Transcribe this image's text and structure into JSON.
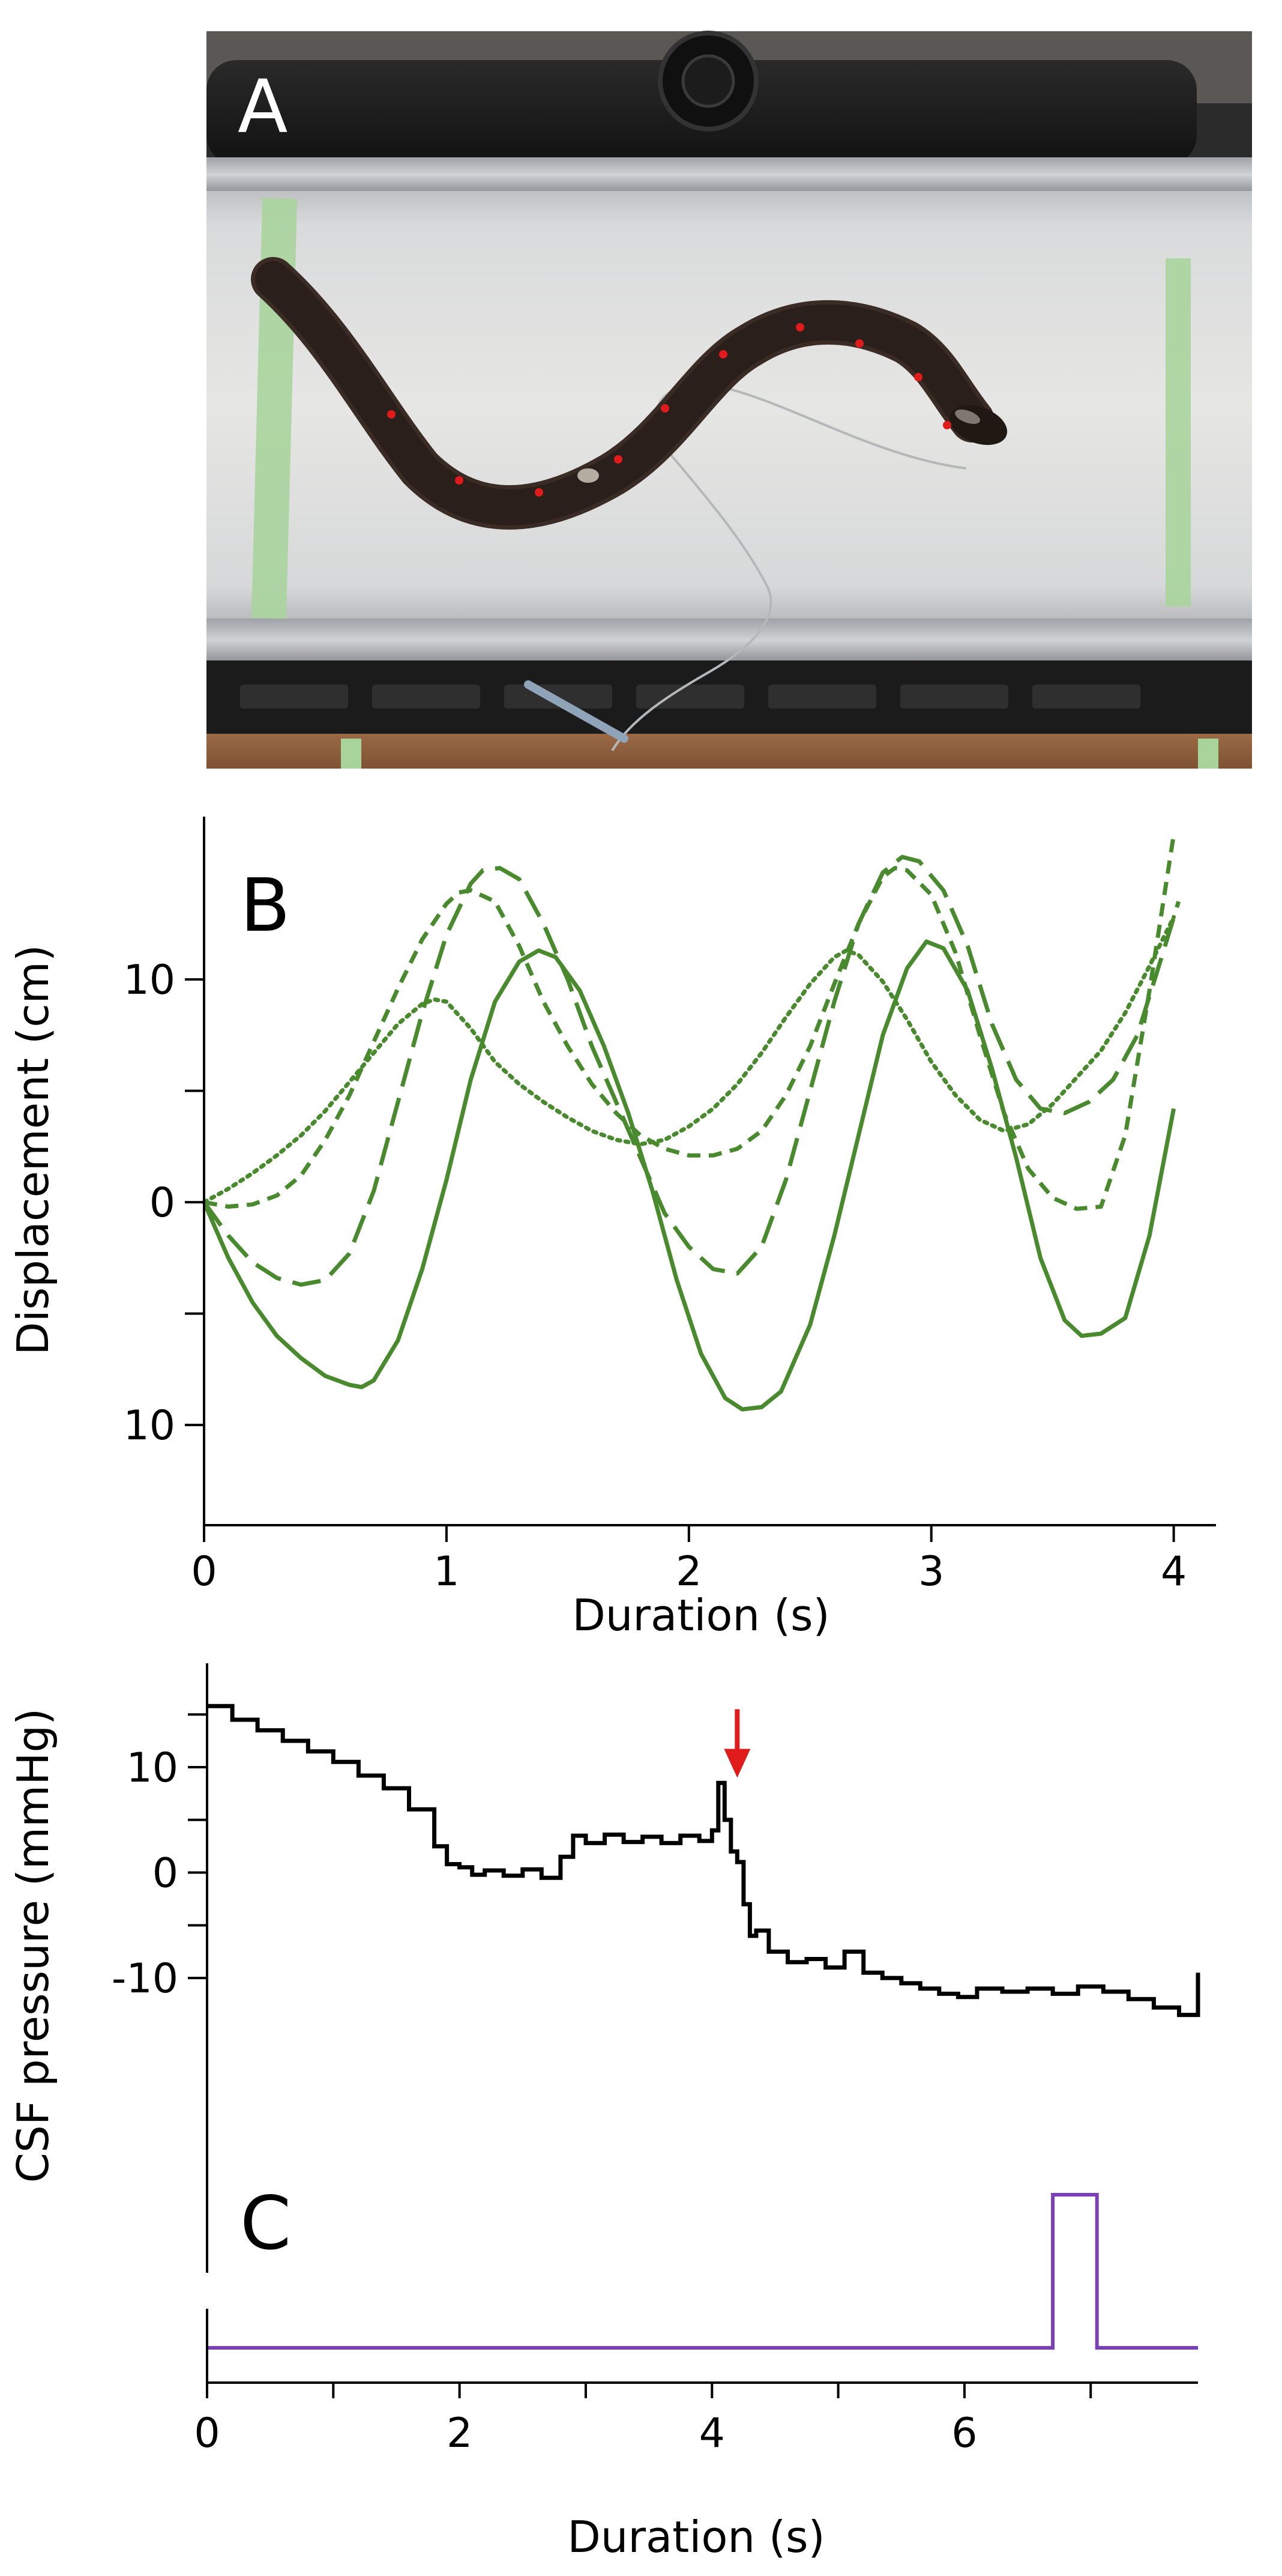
{
  "panel_a": {
    "label": "A",
    "marker_color": "#e01b1b",
    "marker_count": 10
  },
  "chart_data": [
    {
      "type": "line",
      "panel_label": "B",
      "title": "",
      "xlabel": "Duration (s)",
      "ylabel": "Displacement (cm)",
      "xlim": [
        0,
        4.1
      ],
      "ylim": [
        -14.5,
        16.5
      ],
      "xticks": [
        0,
        1,
        2,
        3,
        4
      ],
      "xtick_labels": [
        "0",
        "1",
        "2",
        "3",
        "4"
      ],
      "yticks": [
        10,
        5,
        0,
        -5,
        -10
      ],
      "ytick_labels": [
        "10",
        "",
        "0",
        "",
        "10"
      ],
      "grid": false,
      "legend": "none",
      "series_color": "#4a8a2e",
      "series": [
        {
          "style": "solid",
          "x": [
            0,
            0.1,
            0.2,
            0.3,
            0.4,
            0.5,
            0.6,
            0.65,
            0.7,
            0.8,
            0.9,
            1.0,
            1.1,
            1.2,
            1.3,
            1.38,
            1.45,
            1.55,
            1.65,
            1.75,
            1.85,
            1.95,
            2.05,
            2.15,
            2.22,
            2.3,
            2.38,
            2.5,
            2.6,
            2.7,
            2.8,
            2.9,
            2.98,
            3.05,
            3.15,
            3.25,
            3.35,
            3.45,
            3.55,
            3.62,
            3.7,
            3.8,
            3.9,
            4.0
          ],
          "y": [
            0,
            -2.5,
            -4.5,
            -6.0,
            -7.0,
            -7.8,
            -8.2,
            -8.3,
            -8.0,
            -6.2,
            -3.0,
            1.0,
            5.5,
            9.0,
            10.8,
            11.3,
            11.0,
            9.5,
            7.0,
            4.0,
            0.5,
            -3.5,
            -6.8,
            -8.8,
            -9.3,
            -9.2,
            -8.5,
            -5.5,
            -1.5,
            3.0,
            7.5,
            10.5,
            11.7,
            11.4,
            9.5,
            6.0,
            2.0,
            -2.5,
            -5.3,
            -6.0,
            -5.9,
            -5.2,
            -1.5,
            4.2
          ]
        },
        {
          "style": "long-dash",
          "x": [
            0,
            0.1,
            0.2,
            0.3,
            0.4,
            0.5,
            0.6,
            0.7,
            0.8,
            0.9,
            1.0,
            1.1,
            1.15,
            1.22,
            1.3,
            1.4,
            1.5,
            1.6,
            1.7,
            1.8,
            1.9,
            2.0,
            2.1,
            2.2,
            2.3,
            2.4,
            2.5,
            2.6,
            2.7,
            2.8,
            2.88,
            2.95,
            3.05,
            3.15,
            3.25,
            3.35,
            3.45,
            3.55,
            3.65,
            3.75,
            3.85,
            3.95,
            4.02
          ],
          "y": [
            0,
            -1.5,
            -2.7,
            -3.4,
            -3.7,
            -3.5,
            -2.3,
            0.5,
            4.5,
            8.5,
            12.0,
            14.3,
            14.9,
            15.0,
            14.5,
            12.5,
            10.0,
            7.0,
            4.5,
            2.0,
            -0.5,
            -2.0,
            -3.0,
            -3.2,
            -2.0,
            1.0,
            5.0,
            9.0,
            12.5,
            14.8,
            15.5,
            15.3,
            14.0,
            11.5,
            8.0,
            5.5,
            4.2,
            4.0,
            4.5,
            5.5,
            7.5,
            11.0,
            13.5
          ]
        },
        {
          "style": "short-dash",
          "x": [
            0,
            0.1,
            0.2,
            0.3,
            0.4,
            0.5,
            0.6,
            0.7,
            0.8,
            0.9,
            1.0,
            1.05,
            1.1,
            1.2,
            1.3,
            1.4,
            1.5,
            1.6,
            1.7,
            1.8,
            1.9,
            2.0,
            2.1,
            2.2,
            2.3,
            2.4,
            2.5,
            2.6,
            2.7,
            2.8,
            2.85,
            2.9,
            3.0,
            3.1,
            3.2,
            3.3,
            3.4,
            3.5,
            3.6,
            3.7,
            3.8,
            3.9,
            4.0
          ],
          "y": [
            0,
            -0.2,
            -0.1,
            0.3,
            1.2,
            2.8,
            4.8,
            7.2,
            9.6,
            11.8,
            13.4,
            13.9,
            14.0,
            13.5,
            11.5,
            9.0,
            7.0,
            5.3,
            4.0,
            3.0,
            2.4,
            2.1,
            2.1,
            2.4,
            3.2,
            4.8,
            7.0,
            9.8,
            12.5,
            14.6,
            15.0,
            14.9,
            13.8,
            11.2,
            7.5,
            4.0,
            1.5,
            0.2,
            -0.3,
            -0.2,
            3.0,
            9.5,
            16.5
          ]
        },
        {
          "style": "dotted",
          "x": [
            0,
            0.1,
            0.2,
            0.3,
            0.4,
            0.5,
            0.6,
            0.7,
            0.8,
            0.9,
            0.95,
            1.0,
            1.1,
            1.2,
            1.3,
            1.4,
            1.5,
            1.6,
            1.7,
            1.8,
            1.9,
            2.0,
            2.1,
            2.2,
            2.3,
            2.4,
            2.5,
            2.6,
            2.65,
            2.7,
            2.8,
            2.9,
            3.0,
            3.1,
            3.2,
            3.3,
            3.4,
            3.5,
            3.6,
            3.7,
            3.8,
            3.9,
            4.0
          ],
          "y": [
            0,
            0.6,
            1.3,
            2.1,
            3.0,
            4.1,
            5.4,
            6.7,
            8.0,
            8.9,
            9.1,
            9.0,
            7.8,
            6.3,
            5.3,
            4.5,
            3.8,
            3.2,
            2.8,
            2.6,
            2.8,
            3.4,
            4.2,
            5.3,
            6.7,
            8.3,
            9.8,
            11.0,
            11.3,
            11.1,
            9.9,
            8.2,
            6.3,
            4.8,
            3.7,
            3.2,
            3.5,
            4.4,
            5.6,
            6.8,
            8.5,
            10.6,
            12.8
          ]
        }
      ]
    },
    {
      "type": "line",
      "panel_label": "C",
      "title": "",
      "xlabel": "Duration (s)",
      "ylabel": "CSF pressure (mmHg)",
      "xlim": [
        0,
        7.85
      ],
      "ylim": [
        -26,
        19
      ],
      "xticks": [
        0,
        1,
        2,
        3,
        4,
        5,
        6,
        7
      ],
      "xtick_labels": [
        "0",
        "",
        "2",
        "",
        "4",
        "",
        "6",
        ""
      ],
      "yticks": [
        15,
        10,
        5,
        0,
        -5,
        -10
      ],
      "ytick_labels": [
        "",
        "10",
        "",
        "0",
        "",
        "-10"
      ],
      "grid": false,
      "legend": "none",
      "arrow_annotation": {
        "x": 4.2,
        "y_top": 15.5,
        "y_bottom": 9.0,
        "color": "#e01b1b"
      },
      "series": [
        {
          "style": "stepped",
          "color": "#000000",
          "x": [
            0,
            0.2,
            0.4,
            0.6,
            0.8,
            1.0,
            1.2,
            1.4,
            1.6,
            1.8,
            1.9,
            2.0,
            2.1,
            2.2,
            2.35,
            2.5,
            2.65,
            2.8,
            2.9,
            3.0,
            3.15,
            3.3,
            3.45,
            3.6,
            3.75,
            3.9,
            4.0,
            4.05,
            4.1,
            4.15,
            4.2,
            4.25,
            4.3,
            4.35,
            4.45,
            4.6,
            4.75,
            4.9,
            5.05,
            5.2,
            5.35,
            5.5,
            5.65,
            5.8,
            5.95,
            6.1,
            6.3,
            6.5,
            6.7,
            6.9,
            7.1,
            7.3,
            7.5,
            7.7,
            7.85
          ],
          "y": [
            15.8,
            14.5,
            13.5,
            12.5,
            11.5,
            10.5,
            9.2,
            8.0,
            6.0,
            2.5,
            0.8,
            0.5,
            -0.2,
            0.2,
            -0.3,
            0.3,
            -0.5,
            1.5,
            3.5,
            2.8,
            3.6,
            2.9,
            3.4,
            2.8,
            3.5,
            3.0,
            4.0,
            8.5,
            5.0,
            2.0,
            1.0,
            -3.0,
            -6.0,
            -5.5,
            -7.5,
            -8.5,
            -8.2,
            -9.0,
            -7.5,
            -9.5,
            -10.0,
            -10.5,
            -11.0,
            -11.5,
            -11.8,
            -11.0,
            -11.3,
            -11.0,
            -11.5,
            -10.8,
            -11.3,
            -12.0,
            -12.8,
            -13.5,
            -9.5
          ]
        },
        {
          "style": "step",
          "color": "#7b3fb8",
          "x": [
            0,
            6.7,
            6.7,
            7.05,
            7.05,
            7.85
          ],
          "level": [
            0,
            0,
            1,
            1,
            0,
            0
          ]
        }
      ]
    }
  ]
}
